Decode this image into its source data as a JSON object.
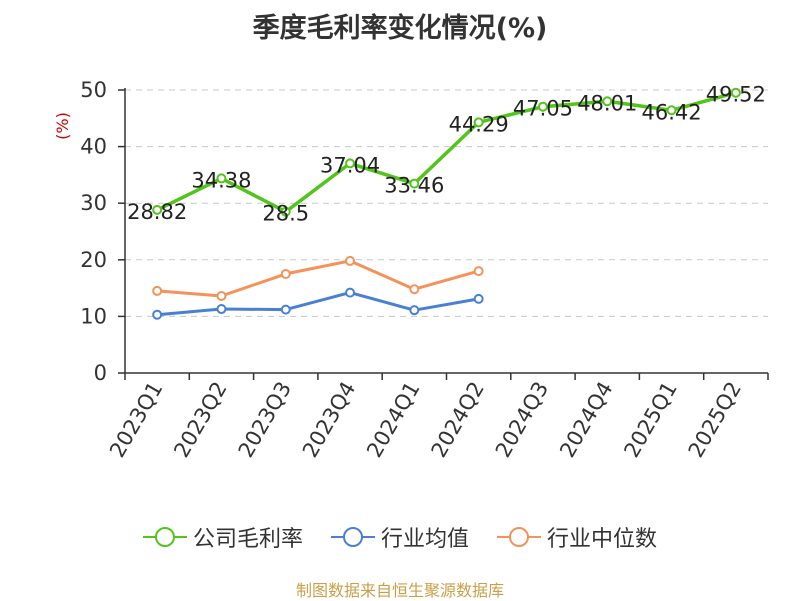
{
  "title": "季度毛利率变化情况(%)",
  "source": "制图数据来自恒生聚源数据库",
  "colors": {
    "gross_margin": "#52c41a",
    "industry_avg": "#4a7fd6",
    "industry_median": "#f4925a",
    "ylabel": "#cc0000",
    "source": "#c8a04a"
  },
  "chart_data": {
    "type": "line",
    "title": "季度毛利率变化情况(%)",
    "ylabel": "(%)",
    "xlabel": "",
    "categories": [
      "2023Q1",
      "2023Q2",
      "2023Q3",
      "2023Q4",
      "2024Q1",
      "2024Q2",
      "2024Q3",
      "2024Q4",
      "2025Q1",
      "2025Q2"
    ],
    "ylim": [
      0,
      50
    ],
    "yticks": [
      0,
      10,
      20,
      30,
      40,
      50
    ],
    "grid": true,
    "legend_position": "bottom",
    "series": [
      {
        "name": "公司毛利率",
        "values": [
          28.82,
          34.38,
          28.5,
          37.04,
          33.46,
          44.29,
          47.05,
          48.01,
          46.42,
          49.52
        ],
        "show_labels": true
      },
      {
        "name": "行业均值",
        "values": [
          10.3,
          11.3,
          11.2,
          14.2,
          11.1,
          13.1,
          null,
          null,
          null,
          null
        ],
        "show_labels": false
      },
      {
        "name": "行业中位数",
        "values": [
          14.5,
          13.6,
          17.5,
          19.8,
          14.8,
          18.0,
          null,
          null,
          null,
          null
        ],
        "show_labels": false
      }
    ]
  }
}
